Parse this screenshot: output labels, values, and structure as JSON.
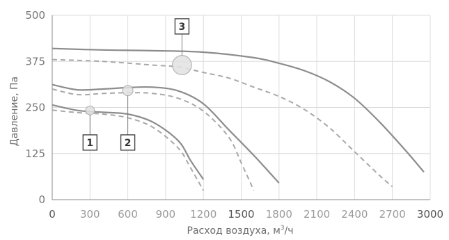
{
  "chart_data": {
    "type": "line",
    "xlabel": "Расход воздуха, м",
    "xlabel_sup": "3",
    "xlabel_suffix": "/ч",
    "ylabel": "Давление, Па",
    "xlim": [
      0,
      3000
    ],
    "ylim": [
      0,
      500
    ],
    "grid": true,
    "x_ticks": [
      0,
      300,
      600,
      900,
      1200,
      1500,
      1800,
      2100,
      2400,
      2700,
      3000
    ],
    "x_tick_labels": [
      "0",
      "300",
      "600",
      "900",
      "1200",
      "1500",
      "1800",
      "2100",
      "2400",
      "2700",
      "3000"
    ],
    "x_strong_ticks": [
      0,
      1500,
      3000
    ],
    "y_ticks": [
      0,
      125,
      250,
      375,
      500
    ],
    "y_tick_labels": [
      "0",
      "125",
      "250",
      "375",
      "500"
    ],
    "series": [
      {
        "style": "solid",
        "x": [
          0,
          200,
          400,
          600,
          800,
          1000,
          1100,
          1200
        ],
        "y": [
          257,
          242,
          237,
          232,
          210,
          160,
          105,
          55
        ]
      },
      {
        "style": "dashed",
        "x": [
          0,
          200,
          400,
          600,
          800,
          1000,
          1100,
          1200
        ],
        "y": [
          243,
          236,
          232,
          222,
          196,
          140,
          85,
          25
        ]
      },
      {
        "style": "solid",
        "x": [
          0,
          200,
          400,
          600,
          800,
          1000,
          1200,
          1400,
          1600,
          1800
        ],
        "y": [
          312,
          298,
          300,
          304,
          305,
          295,
          260,
          190,
          120,
          45
        ]
      },
      {
        "style": "dashed",
        "x": [
          0,
          200,
          400,
          600,
          800,
          1000,
          1200,
          1400,
          1500,
          1600
        ],
        "y": [
          300,
          285,
          288,
          290,
          288,
          275,
          240,
          170,
          100,
          25
        ]
      },
      {
        "style": "solid",
        "x": [
          0,
          400,
          800,
          1200,
          1600,
          1800,
          2000,
          2200,
          2400,
          2600,
          2800,
          2950
        ],
        "y": [
          410,
          406,
          404,
          400,
          385,
          370,
          350,
          320,
          275,
          210,
          135,
          75
        ]
      },
      {
        "style": "dashed",
        "x": [
          0,
          400,
          800,
          1000,
          1200,
          1400,
          1600,
          1800,
          2000,
          2200,
          2400,
          2600,
          2700
        ],
        "y": [
          380,
          375,
          365,
          360,
          345,
          330,
          305,
          280,
          245,
          195,
          130,
          65,
          35
        ]
      }
    ],
    "bubbles": [
      {
        "x": 300,
        "y": 242,
        "r": 12,
        "label": "1",
        "label_x": 300,
        "label_y": 155
      },
      {
        "x": 600,
        "y": 296,
        "r": 14,
        "label": "2",
        "label_x": 600,
        "label_y": 155
      },
      {
        "x": 1030,
        "y": 365,
        "r": 26,
        "label": "3",
        "label_x": 1030,
        "label_y": 470
      }
    ]
  }
}
